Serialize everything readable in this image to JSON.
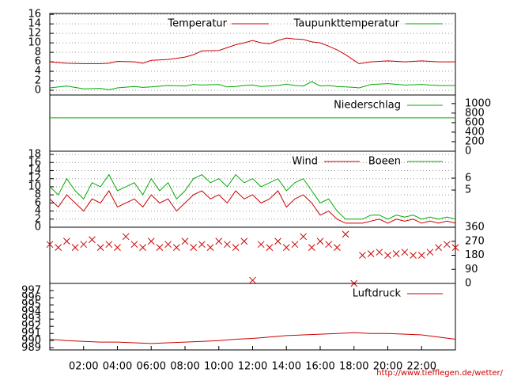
{
  "chart_data": [
    {
      "type": "line",
      "xlim": [
        0,
        24
      ],
      "ylim": [
        -1,
        16.2
      ],
      "yticks": [
        0,
        2,
        4,
        6,
        8,
        10,
        12,
        14,
        16
      ],
      "grid": true,
      "x": [
        0,
        1,
        2,
        3,
        3.5,
        4,
        5,
        5.5,
        6,
        7,
        8,
        8.5,
        9,
        10,
        10.5,
        11,
        11.5,
        12,
        12.5,
        13,
        13.5,
        14,
        14.5,
        15,
        15.5,
        16,
        16.5,
        17,
        17.5,
        18,
        18.3,
        19,
        20,
        21,
        22,
        23,
        24
      ],
      "series": [
        {
          "name": "Temperatur",
          "color": "#cc0000",
          "values": [
            6.0,
            5.7,
            5.6,
            5.6,
            5.7,
            6.1,
            6.0,
            5.7,
            6.3,
            6.5,
            7.0,
            7.5,
            8.3,
            8.4,
            9.0,
            9.6,
            10.0,
            10.5,
            10.0,
            9.8,
            10.5,
            11.0,
            10.8,
            10.7,
            10.2,
            10.0,
            9.3,
            8.5,
            7.5,
            6.3,
            5.6,
            6.0,
            6.2,
            6.0,
            6.2,
            6.0,
            6.0
          ]
        },
        {
          "name": "Taupunkttemperatur",
          "color": "#00aa00",
          "values": [
            0.5,
            0.9,
            0.3,
            0.4,
            0.1,
            0.5,
            0.8,
            0.6,
            0.7,
            1.0,
            0.9,
            1.2,
            1.1,
            1.2,
            0.7,
            0.8,
            1.0,
            1.1,
            0.8,
            0.9,
            1.0,
            1.3,
            1.0,
            0.9,
            1.8,
            0.9,
            1.0,
            0.8,
            0.7,
            0.6,
            0.5,
            1.2,
            1.4,
            1.1,
            1.2,
            1.0,
            1.0
          ]
        }
      ]
    },
    {
      "type": "line",
      "xlim": [
        0,
        24
      ],
      "y2lim": [
        0,
        1180
      ],
      "y2ticks": [
        0,
        200,
        400,
        600,
        800,
        1000
      ],
      "x": [
        0,
        24
      ],
      "series": [
        {
          "name": "Niederschlag",
          "color": "#00aa00",
          "axis": "y2",
          "values": [
            700,
            700
          ]
        }
      ]
    },
    {
      "type": "line",
      "xlim": [
        0,
        24
      ],
      "ylim": [
        0,
        18.8
      ],
      "yticks": [
        0,
        2,
        4,
        6,
        8,
        10,
        12,
        14,
        16,
        18
      ],
      "y2lim": [
        1.87,
        8.27
      ],
      "y2ticks": [
        5,
        6
      ],
      "grid": true,
      "x": [
        0,
        0.5,
        1,
        1.5,
        2,
        2.5,
        3,
        3.5,
        4,
        4.5,
        5,
        5.5,
        6,
        6.5,
        7,
        7.5,
        8,
        8.5,
        9,
        9.5,
        10,
        10.5,
        11,
        11.5,
        12,
        12.5,
        13,
        13.5,
        14,
        14.5,
        15,
        15.5,
        16,
        16.5,
        17,
        17.5,
        18,
        18.5,
        19,
        19.5,
        20,
        20.5,
        21,
        21.5,
        22,
        22.5,
        23,
        23.5,
        24
      ],
      "series": [
        {
          "name": "Wind",
          "color": "#cc0000",
          "values": [
            7,
            5,
            8,
            6,
            4,
            7,
            6,
            9,
            5,
            6,
            7,
            5,
            8,
            6,
            7,
            4,
            6,
            8,
            9,
            7,
            8,
            6,
            9,
            7,
            8,
            6,
            7,
            9,
            5,
            7,
            8,
            6,
            3,
            4,
            2,
            1,
            1,
            1,
            1.5,
            2,
            1,
            2,
            1.5,
            2,
            1,
            1.5,
            1,
            1.5,
            1
          ]
        },
        {
          "name": "Boeen",
          "color": "#00aa00",
          "values": [
            10,
            8,
            12,
            9,
            7,
            11,
            10,
            13,
            9,
            10,
            11,
            8,
            12,
            9,
            11,
            7,
            9,
            12,
            13,
            11,
            12,
            10,
            13,
            11,
            12,
            10,
            11,
            12,
            9,
            11,
            12,
            9,
            6,
            7,
            4,
            2,
            2,
            2,
            3,
            3,
            2,
            3,
            2.5,
            3,
            2,
            2.5,
            2,
            2.5,
            2
          ]
        }
      ]
    },
    {
      "type": "scatter",
      "xlim": [
        0,
        24
      ],
      "y2lim": [
        0,
        360
      ],
      "y2ticks": [
        0,
        90,
        180,
        270,
        360
      ],
      "x": [
        0,
        0.5,
        1,
        1.5,
        2,
        2.5,
        3,
        3.5,
        4,
        4.5,
        5,
        5.5,
        6,
        6.5,
        7,
        7.5,
        8,
        8.5,
        9,
        9.5,
        10,
        10.5,
        11,
        11.5,
        12,
        12.5,
        13,
        13.5,
        14,
        14.5,
        15,
        15.5,
        16,
        16.5,
        17,
        17.5,
        18,
        18.5,
        19,
        19.5,
        20,
        20.5,
        21,
        21.5,
        22,
        22.5,
        23,
        23.5,
        24
      ],
      "series": [
        {
          "color": "#cc0000",
          "axis": "y2",
          "values": [
            250,
            230,
            270,
            230,
            250,
            280,
            230,
            250,
            230,
            300,
            250,
            230,
            270,
            230,
            250,
            230,
            270,
            230,
            250,
            230,
            270,
            250,
            230,
            270,
            20,
            250,
            230,
            270,
            230,
            250,
            300,
            230,
            270,
            250,
            230,
            315,
            0,
            180,
            190,
            200,
            180,
            190,
            200,
            180,
            180,
            200,
            230,
            250,
            230
          ]
        }
      ]
    },
    {
      "type": "line",
      "xlim": [
        0,
        24
      ],
      "ylim": [
        988.7,
        998
      ],
      "yticks": [
        989,
        990,
        991,
        992,
        993,
        994,
        995,
        996,
        997
      ],
      "xticks": [
        {
          "value": 2,
          "label": "02:00"
        },
        {
          "value": 4,
          "label": "04:00"
        },
        {
          "value": 6,
          "label": "06:00"
        },
        {
          "value": 8,
          "label": "08:00"
        },
        {
          "value": 10,
          "label": "10:00"
        },
        {
          "value": 12,
          "label": "12:00"
        },
        {
          "value": 14,
          "label": "14:00"
        },
        {
          "value": 16,
          "label": "16:00"
        },
        {
          "value": 18,
          "label": "18:00"
        },
        {
          "value": 20,
          "label": "20:00"
        },
        {
          "value": 22,
          "label": "22:00"
        }
      ],
      "x": [
        0,
        1,
        2,
        3,
        4,
        5,
        6,
        7,
        8,
        9,
        10,
        11,
        12,
        13,
        14,
        15,
        16,
        17,
        18,
        19,
        20,
        21,
        22,
        23,
        24
      ],
      "series": [
        {
          "name": "Luftdruck",
          "color": "#cc0000",
          "values": [
            990.2,
            990.0,
            989.9,
            989.8,
            989.8,
            989.7,
            989.6,
            989.7,
            989.8,
            989.9,
            990.0,
            990.2,
            990.3,
            990.5,
            990.7,
            990.8,
            990.9,
            991.0,
            991.1,
            991.0,
            991.0,
            990.9,
            990.8,
            990.5,
            990.2
          ]
        }
      ]
    }
  ],
  "footer": "http://www.tiefflegen.de/wetter/"
}
